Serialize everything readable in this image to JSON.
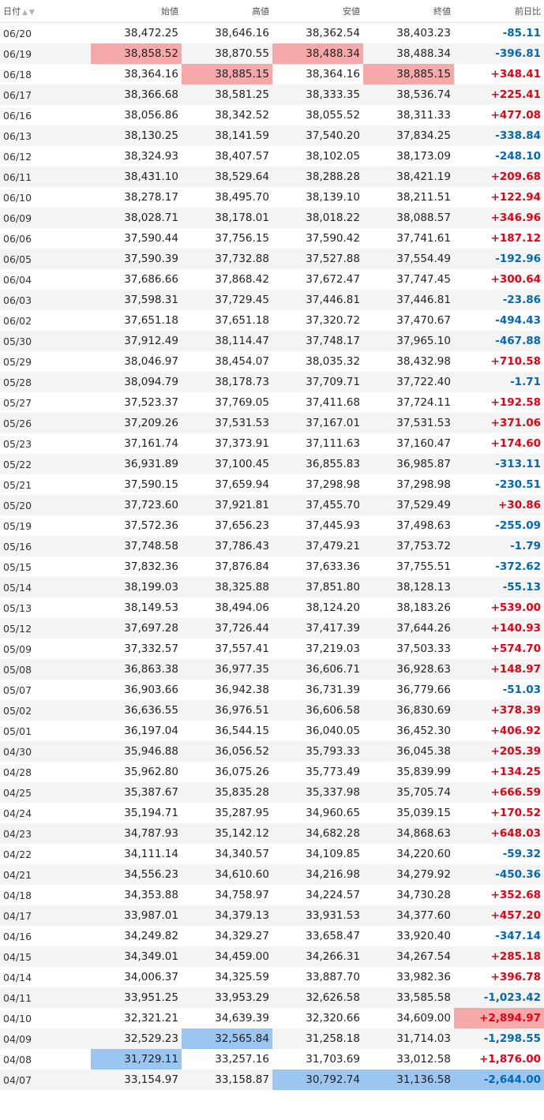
{
  "colors": {
    "up": "#e60012",
    "down": "#0068b7",
    "highlight_high": "#f7a9a9",
    "highlight_low": "#9cc6f2"
  },
  "headers": {
    "date": "日付",
    "open": "始値",
    "high": "高値",
    "low": "安値",
    "close": "終値",
    "change": "前日比"
  },
  "sort_icons": {
    "asc": "sort-ascending-icon",
    "desc": "sort-descending-icon"
  },
  "rows": [
    {
      "date": "06/20",
      "open": "38,472.25",
      "high": "38,646.16",
      "low": "38,362.54",
      "close": "38,403.23",
      "change": "-85.11",
      "dir": "down",
      "hl": {}
    },
    {
      "date": "06/19",
      "open": "38,858.52",
      "high": "38,870.55",
      "low": "38,488.34",
      "close": "38,488.34",
      "change": "-396.81",
      "dir": "down",
      "hl": {
        "open": "red",
        "low": "red"
      }
    },
    {
      "date": "06/18",
      "open": "38,364.16",
      "high": "38,885.15",
      "low": "38,364.16",
      "close": "38,885.15",
      "change": "+348.41",
      "dir": "up",
      "hl": {
        "high": "red",
        "close": "red"
      }
    },
    {
      "date": "06/17",
      "open": "38,366.68",
      "high": "38,581.25",
      "low": "38,333.35",
      "close": "38,536.74",
      "change": "+225.41",
      "dir": "up",
      "hl": {}
    },
    {
      "date": "06/16",
      "open": "38,056.86",
      "high": "38,342.52",
      "low": "38,055.52",
      "close": "38,311.33",
      "change": "+477.08",
      "dir": "up",
      "hl": {}
    },
    {
      "date": "06/13",
      "open": "38,130.25",
      "high": "38,141.59",
      "low": "37,540.20",
      "close": "37,834.25",
      "change": "-338.84",
      "dir": "down",
      "hl": {}
    },
    {
      "date": "06/12",
      "open": "38,324.93",
      "high": "38,407.57",
      "low": "38,102.05",
      "close": "38,173.09",
      "change": "-248.10",
      "dir": "down",
      "hl": {}
    },
    {
      "date": "06/11",
      "open": "38,431.10",
      "high": "38,529.64",
      "low": "38,288.28",
      "close": "38,421.19",
      "change": "+209.68",
      "dir": "up",
      "hl": {}
    },
    {
      "date": "06/10",
      "open": "38,278.17",
      "high": "38,495.70",
      "low": "38,139.10",
      "close": "38,211.51",
      "change": "+122.94",
      "dir": "up",
      "hl": {}
    },
    {
      "date": "06/09",
      "open": "38,028.71",
      "high": "38,178.01",
      "low": "38,018.22",
      "close": "38,088.57",
      "change": "+346.96",
      "dir": "up",
      "hl": {}
    },
    {
      "date": "06/06",
      "open": "37,590.44",
      "high": "37,756.15",
      "low": "37,590.42",
      "close": "37,741.61",
      "change": "+187.12",
      "dir": "up",
      "hl": {}
    },
    {
      "date": "06/05",
      "open": "37,590.39",
      "high": "37,732.88",
      "low": "37,527.88",
      "close": "37,554.49",
      "change": "-192.96",
      "dir": "down",
      "hl": {}
    },
    {
      "date": "06/04",
      "open": "37,686.66",
      "high": "37,868.42",
      "low": "37,672.47",
      "close": "37,747.45",
      "change": "+300.64",
      "dir": "up",
      "hl": {}
    },
    {
      "date": "06/03",
      "open": "37,598.31",
      "high": "37,729.45",
      "low": "37,446.81",
      "close": "37,446.81",
      "change": "-23.86",
      "dir": "down",
      "hl": {}
    },
    {
      "date": "06/02",
      "open": "37,651.18",
      "high": "37,651.18",
      "low": "37,320.72",
      "close": "37,470.67",
      "change": "-494.43",
      "dir": "down",
      "hl": {}
    },
    {
      "date": "05/30",
      "open": "37,912.49",
      "high": "38,114.47",
      "low": "37,748.17",
      "close": "37,965.10",
      "change": "-467.88",
      "dir": "down",
      "hl": {}
    },
    {
      "date": "05/29",
      "open": "38,046.97",
      "high": "38,454.07",
      "low": "38,035.32",
      "close": "38,432.98",
      "change": "+710.58",
      "dir": "up",
      "hl": {}
    },
    {
      "date": "05/28",
      "open": "38,094.79",
      "high": "38,178.73",
      "low": "37,709.71",
      "close": "37,722.40",
      "change": "-1.71",
      "dir": "down",
      "hl": {}
    },
    {
      "date": "05/27",
      "open": "37,523.37",
      "high": "37,769.05",
      "low": "37,411.68",
      "close": "37,724.11",
      "change": "+192.58",
      "dir": "up",
      "hl": {}
    },
    {
      "date": "05/26",
      "open": "37,209.26",
      "high": "37,531.53",
      "low": "37,167.01",
      "close": "37,531.53",
      "change": "+371.06",
      "dir": "up",
      "hl": {}
    },
    {
      "date": "05/23",
      "open": "37,161.74",
      "high": "37,373.91",
      "low": "37,111.63",
      "close": "37,160.47",
      "change": "+174.60",
      "dir": "up",
      "hl": {}
    },
    {
      "date": "05/22",
      "open": "36,931.89",
      "high": "37,100.45",
      "low": "36,855.83",
      "close": "36,985.87",
      "change": "-313.11",
      "dir": "down",
      "hl": {}
    },
    {
      "date": "05/21",
      "open": "37,590.15",
      "high": "37,659.94",
      "low": "37,298.98",
      "close": "37,298.98",
      "change": "-230.51",
      "dir": "down",
      "hl": {}
    },
    {
      "date": "05/20",
      "open": "37,723.60",
      "high": "37,921.81",
      "low": "37,455.70",
      "close": "37,529.49",
      "change": "+30.86",
      "dir": "up",
      "hl": {}
    },
    {
      "date": "05/19",
      "open": "37,572.36",
      "high": "37,656.23",
      "low": "37,445.93",
      "close": "37,498.63",
      "change": "-255.09",
      "dir": "down",
      "hl": {}
    },
    {
      "date": "05/16",
      "open": "37,748.58",
      "high": "37,786.43",
      "low": "37,479.21",
      "close": "37,753.72",
      "change": "-1.79",
      "dir": "down",
      "hl": {}
    },
    {
      "date": "05/15",
      "open": "37,832.36",
      "high": "37,876.84",
      "low": "37,633.36",
      "close": "37,755.51",
      "change": "-372.62",
      "dir": "down",
      "hl": {}
    },
    {
      "date": "05/14",
      "open": "38,199.03",
      "high": "38,325.88",
      "low": "37,851.80",
      "close": "38,128.13",
      "change": "-55.13",
      "dir": "down",
      "hl": {}
    },
    {
      "date": "05/13",
      "open": "38,149.53",
      "high": "38,494.06",
      "low": "38,124.20",
      "close": "38,183.26",
      "change": "+539.00",
      "dir": "up",
      "hl": {}
    },
    {
      "date": "05/12",
      "open": "37,697.28",
      "high": "37,726.44",
      "low": "37,417.39",
      "close": "37,644.26",
      "change": "+140.93",
      "dir": "up",
      "hl": {}
    },
    {
      "date": "05/09",
      "open": "37,332.57",
      "high": "37,557.41",
      "low": "37,219.03",
      "close": "37,503.33",
      "change": "+574.70",
      "dir": "up",
      "hl": {}
    },
    {
      "date": "05/08",
      "open": "36,863.38",
      "high": "36,977.35",
      "low": "36,606.71",
      "close": "36,928.63",
      "change": "+148.97",
      "dir": "up",
      "hl": {}
    },
    {
      "date": "05/07",
      "open": "36,903.66",
      "high": "36,942.38",
      "low": "36,731.39",
      "close": "36,779.66",
      "change": "-51.03",
      "dir": "down",
      "hl": {}
    },
    {
      "date": "05/02",
      "open": "36,636.55",
      "high": "36,976.51",
      "low": "36,606.58",
      "close": "36,830.69",
      "change": "+378.39",
      "dir": "up",
      "hl": {}
    },
    {
      "date": "05/01",
      "open": "36,197.04",
      "high": "36,544.15",
      "low": "36,040.05",
      "close": "36,452.30",
      "change": "+406.92",
      "dir": "up",
      "hl": {}
    },
    {
      "date": "04/30",
      "open": "35,946.88",
      "high": "36,056.52",
      "low": "35,793.33",
      "close": "36,045.38",
      "change": "+205.39",
      "dir": "up",
      "hl": {}
    },
    {
      "date": "04/28",
      "open": "35,962.80",
      "high": "36,075.26",
      "low": "35,773.49",
      "close": "35,839.99",
      "change": "+134.25",
      "dir": "up",
      "hl": {}
    },
    {
      "date": "04/25",
      "open": "35,387.67",
      "high": "35,835.28",
      "low": "35,337.98",
      "close": "35,705.74",
      "change": "+666.59",
      "dir": "up",
      "hl": {}
    },
    {
      "date": "04/24",
      "open": "35,194.71",
      "high": "35,287.95",
      "low": "34,960.65",
      "close": "35,039.15",
      "change": "+170.52",
      "dir": "up",
      "hl": {}
    },
    {
      "date": "04/23",
      "open": "34,787.93",
      "high": "35,142.12",
      "low": "34,682.28",
      "close": "34,868.63",
      "change": "+648.03",
      "dir": "up",
      "hl": {}
    },
    {
      "date": "04/22",
      "open": "34,111.14",
      "high": "34,340.57",
      "low": "34,109.85",
      "close": "34,220.60",
      "change": "-59.32",
      "dir": "down",
      "hl": {}
    },
    {
      "date": "04/21",
      "open": "34,556.23",
      "high": "34,610.60",
      "low": "34,216.98",
      "close": "34,279.92",
      "change": "-450.36",
      "dir": "down",
      "hl": {}
    },
    {
      "date": "04/18",
      "open": "34,353.88",
      "high": "34,758.97",
      "low": "34,224.57",
      "close": "34,730.28",
      "change": "+352.68",
      "dir": "up",
      "hl": {}
    },
    {
      "date": "04/17",
      "open": "33,987.01",
      "high": "34,379.13",
      "low": "33,931.53",
      "close": "34,377.60",
      "change": "+457.20",
      "dir": "up",
      "hl": {}
    },
    {
      "date": "04/16",
      "open": "34,249.82",
      "high": "34,329.27",
      "low": "33,658.47",
      "close": "33,920.40",
      "change": "-347.14",
      "dir": "down",
      "hl": {}
    },
    {
      "date": "04/15",
      "open": "34,349.01",
      "high": "34,459.00",
      "low": "34,266.31",
      "close": "34,267.54",
      "change": "+285.18",
      "dir": "up",
      "hl": {}
    },
    {
      "date": "04/14",
      "open": "34,006.37",
      "high": "34,325.59",
      "low": "33,887.70",
      "close": "33,982.36",
      "change": "+396.78",
      "dir": "up",
      "hl": {}
    },
    {
      "date": "04/11",
      "open": "33,951.25",
      "high": "33,953.29",
      "low": "32,626.58",
      "close": "33,585.58",
      "change": "-1,023.42",
      "dir": "down",
      "hl": {}
    },
    {
      "date": "04/10",
      "open": "32,321.21",
      "high": "34,639.39",
      "low": "32,320.66",
      "close": "34,609.00",
      "change": "+2,894.97",
      "dir": "up",
      "hl": {
        "change": "red"
      }
    },
    {
      "date": "04/09",
      "open": "32,529.23",
      "high": "32,565.84",
      "low": "31,258.18",
      "close": "31,714.03",
      "change": "-1,298.55",
      "dir": "down",
      "hl": {
        "high": "blue"
      }
    },
    {
      "date": "04/08",
      "open": "31,729.11",
      "high": "33,257.16",
      "low": "31,703.69",
      "close": "33,012.58",
      "change": "+1,876.00",
      "dir": "up",
      "hl": {
        "open": "blue"
      }
    },
    {
      "date": "04/07",
      "open": "33,154.97",
      "high": "33,158.87",
      "low": "30,792.74",
      "close": "31,136.58",
      "change": "-2,644.00",
      "dir": "down",
      "hl": {
        "low": "blue",
        "close": "blue",
        "change": "blue"
      }
    }
  ]
}
